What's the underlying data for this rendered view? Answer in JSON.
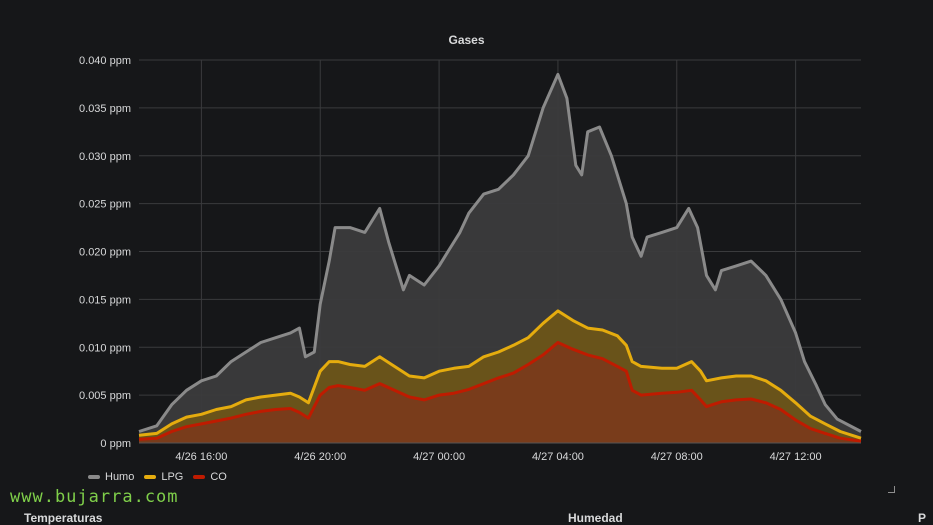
{
  "panel": {
    "title": "Gases"
  },
  "watermark": "www.bujarra.com",
  "next_panels": [
    "Temperaturas",
    "Humedad",
    "P"
  ],
  "chart_data": {
    "type": "area",
    "title": "Gases",
    "xlabel": "",
    "ylabel": "",
    "x_tick_labels": [
      "4/26 16:00",
      "4/26 20:00",
      "4/27 00:00",
      "4/27 04:00",
      "4/27 08:00",
      "4/27 12:00"
    ],
    "x_tick_hours": [
      16,
      20,
      24,
      28,
      32,
      36
    ],
    "y_tick_labels": [
      "0 ppm",
      "0.005 ppm",
      "0.010 ppm",
      "0.015 ppm",
      "0.020 ppm",
      "0.025 ppm",
      "0.030 ppm",
      "0.035 ppm",
      "0.040 ppm"
    ],
    "xlim": [
      13.9,
      38.2
    ],
    "ylim": [
      0,
      0.04
    ],
    "legend_position": "bottom-left",
    "grid": true,
    "series": [
      {
        "name": "Humo",
        "color": "#8a8a8a",
        "fill": "#3b3b3c",
        "points": [
          [
            13.9,
            0.0012
          ],
          [
            14.5,
            0.0018
          ],
          [
            15.0,
            0.004
          ],
          [
            15.5,
            0.0055
          ],
          [
            16.0,
            0.0065
          ],
          [
            16.5,
            0.007
          ],
          [
            17.0,
            0.0085
          ],
          [
            17.5,
            0.0095
          ],
          [
            18.0,
            0.0105
          ],
          [
            18.5,
            0.011
          ],
          [
            19.0,
            0.0115
          ],
          [
            19.3,
            0.012
          ],
          [
            19.5,
            0.009
          ],
          [
            19.8,
            0.0095
          ],
          [
            20.0,
            0.0145
          ],
          [
            20.3,
            0.019
          ],
          [
            20.5,
            0.0225
          ],
          [
            21.0,
            0.0225
          ],
          [
            21.5,
            0.022
          ],
          [
            22.0,
            0.0245
          ],
          [
            22.3,
            0.021
          ],
          [
            22.5,
            0.019
          ],
          [
            22.8,
            0.016
          ],
          [
            23.0,
            0.0175
          ],
          [
            23.5,
            0.0165
          ],
          [
            24.0,
            0.0185
          ],
          [
            24.3,
            0.02
          ],
          [
            24.7,
            0.022
          ],
          [
            25.0,
            0.024
          ],
          [
            25.5,
            0.026
          ],
          [
            26.0,
            0.0265
          ],
          [
            26.5,
            0.028
          ],
          [
            27.0,
            0.03
          ],
          [
            27.5,
            0.035
          ],
          [
            28.0,
            0.0385
          ],
          [
            28.3,
            0.036
          ],
          [
            28.6,
            0.029
          ],
          [
            28.8,
            0.028
          ],
          [
            29.0,
            0.0325
          ],
          [
            29.4,
            0.033
          ],
          [
            29.8,
            0.03
          ],
          [
            30.0,
            0.028
          ],
          [
            30.3,
            0.025
          ],
          [
            30.5,
            0.0215
          ],
          [
            30.8,
            0.0195
          ],
          [
            31.0,
            0.0215
          ],
          [
            31.5,
            0.022
          ],
          [
            32.0,
            0.0225
          ],
          [
            32.4,
            0.0245
          ],
          [
            32.7,
            0.0225
          ],
          [
            33.0,
            0.0175
          ],
          [
            33.3,
            0.016
          ],
          [
            33.5,
            0.018
          ],
          [
            34.0,
            0.0185
          ],
          [
            34.5,
            0.019
          ],
          [
            35.0,
            0.0175
          ],
          [
            35.5,
            0.015
          ],
          [
            36.0,
            0.0115
          ],
          [
            36.3,
            0.0085
          ],
          [
            36.7,
            0.006
          ],
          [
            37.0,
            0.004
          ],
          [
            37.4,
            0.0025
          ],
          [
            38.2,
            0.0012
          ]
        ]
      },
      {
        "name": "LPG",
        "color": "#e5ac0e",
        "fill": "#6b5418",
        "points": [
          [
            13.9,
            0.0008
          ],
          [
            14.5,
            0.001
          ],
          [
            15.0,
            0.002
          ],
          [
            15.5,
            0.0027
          ],
          [
            16.0,
            0.003
          ],
          [
            16.5,
            0.0035
          ],
          [
            17.0,
            0.0038
          ],
          [
            17.5,
            0.0045
          ],
          [
            18.0,
            0.0048
          ],
          [
            18.5,
            0.005
          ],
          [
            19.0,
            0.0052
          ],
          [
            19.3,
            0.0048
          ],
          [
            19.6,
            0.0042
          ],
          [
            20.0,
            0.0075
          ],
          [
            20.3,
            0.0085
          ],
          [
            20.6,
            0.0085
          ],
          [
            21.0,
            0.0082
          ],
          [
            21.5,
            0.008
          ],
          [
            22.0,
            0.009
          ],
          [
            22.5,
            0.008
          ],
          [
            23.0,
            0.007
          ],
          [
            23.5,
            0.0068
          ],
          [
            24.0,
            0.0075
          ],
          [
            24.5,
            0.0078
          ],
          [
            25.0,
            0.008
          ],
          [
            25.5,
            0.009
          ],
          [
            26.0,
            0.0095
          ],
          [
            26.5,
            0.0102
          ],
          [
            27.0,
            0.011
          ],
          [
            27.5,
            0.0125
          ],
          [
            28.0,
            0.0138
          ],
          [
            28.5,
            0.0128
          ],
          [
            29.0,
            0.012
          ],
          [
            29.5,
            0.0118
          ],
          [
            30.0,
            0.0112
          ],
          [
            30.3,
            0.0102
          ],
          [
            30.5,
            0.0085
          ],
          [
            30.8,
            0.008
          ],
          [
            31.5,
            0.0078
          ],
          [
            32.0,
            0.0078
          ],
          [
            32.5,
            0.0085
          ],
          [
            32.8,
            0.0075
          ],
          [
            33.0,
            0.0065
          ],
          [
            33.5,
            0.0068
          ],
          [
            34.0,
            0.007
          ],
          [
            34.5,
            0.007
          ],
          [
            35.0,
            0.0065
          ],
          [
            35.5,
            0.0055
          ],
          [
            36.0,
            0.0042
          ],
          [
            36.5,
            0.0028
          ],
          [
            37.0,
            0.002
          ],
          [
            37.5,
            0.0012
          ],
          [
            38.2,
            0.0005
          ]
        ]
      },
      {
        "name": "CO",
        "color": "#bf1b00",
        "fill": "#7a3b1b",
        "points": [
          [
            13.9,
            0.0004
          ],
          [
            14.5,
            0.0005
          ],
          [
            15.0,
            0.0012
          ],
          [
            15.5,
            0.0017
          ],
          [
            16.0,
            0.002
          ],
          [
            16.5,
            0.0023
          ],
          [
            17.0,
            0.0026
          ],
          [
            17.5,
            0.003
          ],
          [
            18.0,
            0.0033
          ],
          [
            18.5,
            0.0035
          ],
          [
            19.0,
            0.0036
          ],
          [
            19.3,
            0.0032
          ],
          [
            19.6,
            0.0026
          ],
          [
            20.0,
            0.005
          ],
          [
            20.3,
            0.0058
          ],
          [
            20.6,
            0.006
          ],
          [
            21.0,
            0.0058
          ],
          [
            21.5,
            0.0055
          ],
          [
            22.0,
            0.0062
          ],
          [
            22.5,
            0.0055
          ],
          [
            23.0,
            0.0048
          ],
          [
            23.5,
            0.0045
          ],
          [
            24.0,
            0.005
          ],
          [
            24.5,
            0.0052
          ],
          [
            25.0,
            0.0056
          ],
          [
            25.5,
            0.0062
          ],
          [
            26.0,
            0.0068
          ],
          [
            26.5,
            0.0073
          ],
          [
            27.0,
            0.0082
          ],
          [
            27.5,
            0.0092
          ],
          [
            28.0,
            0.0105
          ],
          [
            28.5,
            0.0098
          ],
          [
            29.0,
            0.0092
          ],
          [
            29.5,
            0.0088
          ],
          [
            30.0,
            0.008
          ],
          [
            30.3,
            0.0075
          ],
          [
            30.5,
            0.0055
          ],
          [
            30.8,
            0.005
          ],
          [
            31.5,
            0.0052
          ],
          [
            32.0,
            0.0053
          ],
          [
            32.5,
            0.0055
          ],
          [
            32.8,
            0.0045
          ],
          [
            33.0,
            0.0038
          ],
          [
            33.5,
            0.0043
          ],
          [
            34.0,
            0.0045
          ],
          [
            34.5,
            0.0046
          ],
          [
            35.0,
            0.0042
          ],
          [
            35.5,
            0.0035
          ],
          [
            36.0,
            0.0024
          ],
          [
            36.5,
            0.0015
          ],
          [
            37.0,
            0.001
          ],
          [
            37.5,
            0.0005
          ],
          [
            38.2,
            0.0002
          ]
        ]
      }
    ]
  }
}
